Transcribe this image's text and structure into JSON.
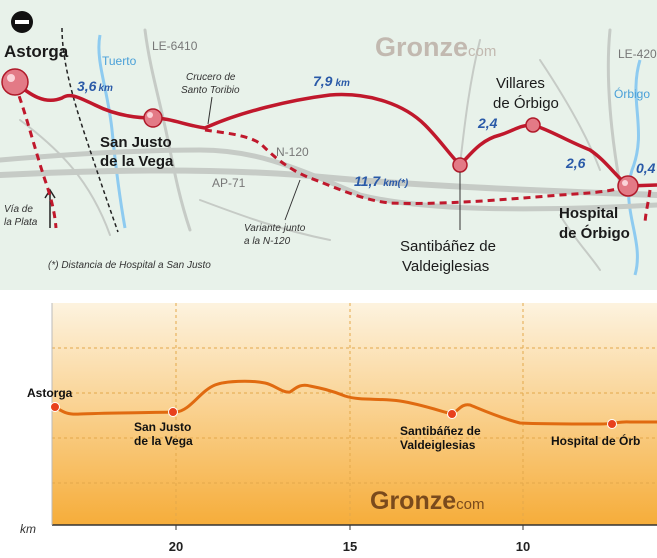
{
  "map": {
    "brand": {
      "main": "Gronze",
      "suffix": "com"
    },
    "towns": {
      "astorga": "Astorga",
      "san_justo_1": "San Justo",
      "san_justo_2": "de la Vega",
      "villares_1": "Villares",
      "villares_2": "de Órbigo",
      "santibanez_1": "Santibáñez de",
      "santibanez_2": "Valdeiglesias",
      "hospital_1": "Hospital",
      "hospital_2": "de Órbigo"
    },
    "roads": {
      "le6410": "LE-6410",
      "le420": "LE-420",
      "n120": "N-120",
      "ap71": "AP-71"
    },
    "rivers": {
      "tuerto": "Tuerto",
      "orbigo": "Órbigo"
    },
    "distances": {
      "d1": "3,6",
      "d1_unit": "km",
      "d2": "7,9",
      "d2_unit": "km",
      "d3": "2,4",
      "d4": "2,6",
      "d5": "11,7",
      "d5_unit": "km(*)",
      "d6": "0,4"
    },
    "notes": {
      "crucero_1": "Crucero de",
      "crucero_2": "Santo Toribio",
      "variante_1": "Variante junto",
      "variante_2": "a la N-120",
      "via_1": "Vía de",
      "via_2": "la Plata",
      "footnote": "(*) Distancia de Hospital a San Justo"
    }
  },
  "profile": {
    "brand": {
      "main": "Gronze",
      "suffix": "com"
    },
    "x_unit": "km",
    "x_ticks": [
      "20",
      "15",
      "10"
    ],
    "labels": {
      "astorga": "Astorga",
      "san_justo_1": "San Justo",
      "san_justo_2": "de la Vega",
      "santibanez_1": "Santibáñez de",
      "santibanez_2": "Valdeiglesias",
      "hospital": "Hospital de Órb"
    }
  },
  "colors": {
    "route": "#c0182c",
    "profile_line": "#e06a10",
    "distance_text": "#2a5aa8",
    "map_bg": "#e8f2ea",
    "river": "#8ecbf0"
  }
}
